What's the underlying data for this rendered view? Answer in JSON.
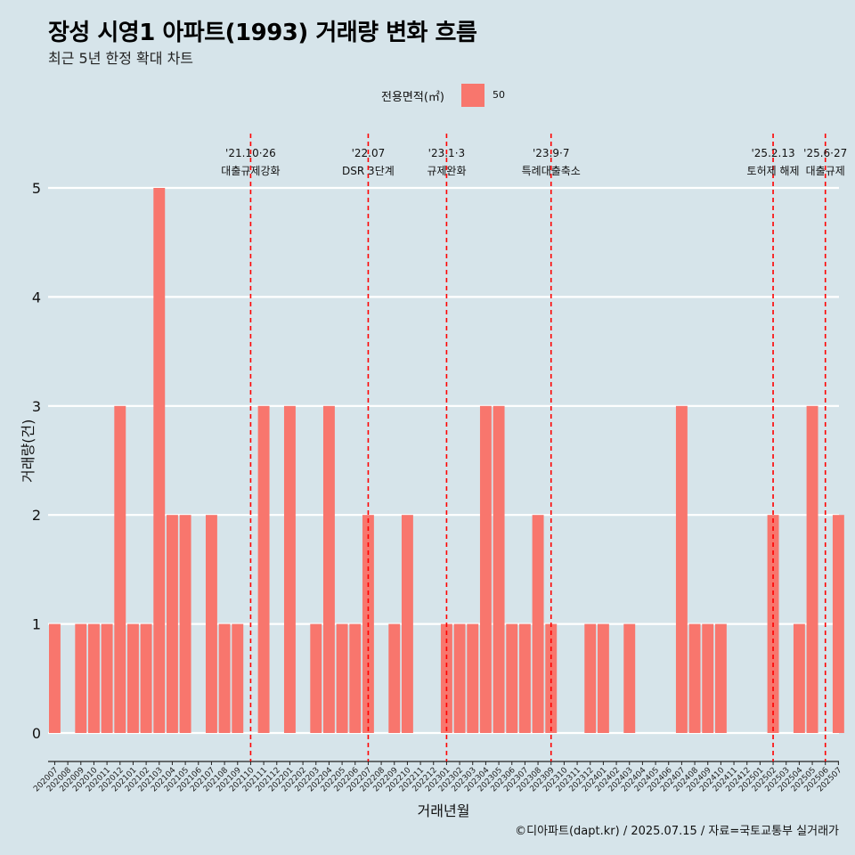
{
  "title": "장성 시영1 아파트(1993) 거래량 변화 흐름",
  "subtitle": "최근 5년 한정 확대 차트",
  "legend": {
    "title": "전용면적(㎡)",
    "items": [
      {
        "label": "50",
        "color": "#f8766d"
      }
    ]
  },
  "caption": "©디아파트(dapt.kr) / 2025.07.15 / 자료=국토교통부 실거래가",
  "colors": {
    "background": "#d6e4ea",
    "bar": "#f8766d",
    "gridline": "#ffffff",
    "event_line": "#ff0000"
  },
  "chart_data": {
    "type": "bar",
    "xlabel": "거래년월",
    "ylabel": "거래량(건)",
    "ylim": [
      0,
      5
    ],
    "yticks": [
      0,
      1,
      2,
      3,
      4,
      5
    ],
    "grid": "horizontal",
    "legend_position": "top",
    "categories": [
      "202007",
      "202008",
      "202009",
      "202010",
      "202011",
      "202012",
      "202101",
      "202102",
      "202103",
      "202104",
      "202105",
      "202106",
      "202107",
      "202108",
      "202109",
      "202110",
      "202111",
      "202112",
      "202201",
      "202202",
      "202203",
      "202204",
      "202205",
      "202206",
      "202207",
      "202208",
      "202209",
      "202210",
      "202211",
      "202212",
      "202301",
      "202302",
      "202303",
      "202304",
      "202305",
      "202306",
      "202307",
      "202308",
      "202309",
      "202310",
      "202311",
      "202312",
      "202401",
      "202402",
      "202403",
      "202404",
      "202405",
      "202406",
      "202407",
      "202408",
      "202409",
      "202410",
      "202411",
      "202412",
      "202501",
      "202502",
      "202503",
      "202504",
      "202505",
      "202506",
      "202507"
    ],
    "series": [
      {
        "name": "50",
        "values": [
          1,
          0,
          1,
          1,
          1,
          3,
          1,
          1,
          5,
          2,
          2,
          0,
          2,
          1,
          1,
          0,
          3,
          0,
          3,
          0,
          1,
          3,
          1,
          1,
          2,
          0,
          1,
          2,
          0,
          0,
          1,
          1,
          1,
          3,
          3,
          1,
          1,
          2,
          1,
          0,
          0,
          1,
          1,
          0,
          1,
          0,
          0,
          0,
          3,
          1,
          1,
          1,
          0,
          0,
          0,
          2,
          0,
          1,
          3,
          0,
          2
        ]
      }
    ],
    "annotations": [
      {
        "x": "202110",
        "label_date": "'21.10·26",
        "label_text": "대출규제강화"
      },
      {
        "x": "202207",
        "label_date": "'22.07",
        "label_text": "DSR 3단계"
      },
      {
        "x": "202301",
        "label_date": "'23.1·3",
        "label_text": "규제완화"
      },
      {
        "x": "202309",
        "label_date": "'23.9·7",
        "label_text": "특례대출축소"
      },
      {
        "x": "202502",
        "label_date": "'25.2.13",
        "label_text": "토허제 해제"
      },
      {
        "x": "202506",
        "label_date": "'25.6·27",
        "label_text": "대출규제"
      }
    ]
  }
}
